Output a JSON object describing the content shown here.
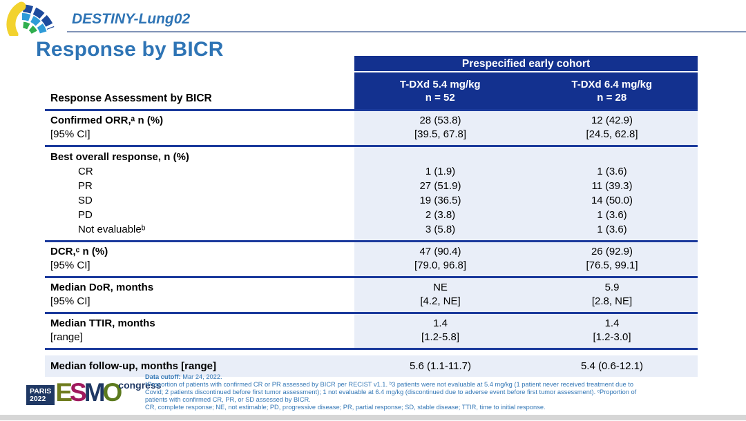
{
  "header": {
    "trial_name": "DESTINY-Lung02",
    "page_title": "Response by BICR"
  },
  "table": {
    "cohort_header": "Prespecified early cohort",
    "row_header_label": "Response Assessment by BICR",
    "columns": [
      {
        "name": "T-DXd 5.4 mg/kg",
        "n": "n = 52"
      },
      {
        "name": "T-DXd 6.4 mg/kg",
        "n": "n = 28"
      }
    ],
    "sections": [
      {
        "rows": [
          {
            "label": "Confirmed ORR,ᵃ n (%)",
            "bold": true,
            "indent": false,
            "values": [
              "28 (53.8)",
              "12 (42.9)"
            ]
          },
          {
            "label": "[95% CI]",
            "bold": false,
            "indent": false,
            "values": [
              "[39.5, 67.8]",
              "[24.5, 62.8]"
            ]
          }
        ]
      },
      {
        "rows": [
          {
            "label": "Best overall response, n (%)",
            "bold": true,
            "indent": false,
            "values": [
              "",
              ""
            ]
          },
          {
            "label": "CR",
            "bold": false,
            "indent": true,
            "values": [
              "1 (1.9)",
              "1 (3.6)"
            ]
          },
          {
            "label": "PR",
            "bold": false,
            "indent": true,
            "values": [
              "27 (51.9)",
              "11 (39.3)"
            ]
          },
          {
            "label": "SD",
            "bold": false,
            "indent": true,
            "values": [
              "19 (36.5)",
              "14 (50.0)"
            ]
          },
          {
            "label": "PD",
            "bold": false,
            "indent": true,
            "values": [
              "2 (3.8)",
              "1 (3.6)"
            ]
          },
          {
            "label": "Not evaluableᵇ",
            "bold": false,
            "indent": true,
            "values": [
              "3 (5.8)",
              "1 (3.6)"
            ]
          }
        ]
      },
      {
        "rows": [
          {
            "label": "DCR,ᶜ n (%)",
            "bold": true,
            "indent": false,
            "values": [
              "47 (90.4)",
              "26 (92.9)"
            ]
          },
          {
            "label": "[95% CI]",
            "bold": false,
            "indent": false,
            "values": [
              "[79.0, 96.8]",
              "[76.5, 99.1]"
            ]
          }
        ]
      },
      {
        "rows": [
          {
            "label": "Median DoR, months",
            "bold": true,
            "indent": false,
            "values": [
              "NE",
              "5.9"
            ]
          },
          {
            "label": "[95% CI]",
            "bold": false,
            "indent": false,
            "values": [
              "[4.2, NE]",
              "[2.8, NE]"
            ]
          }
        ]
      },
      {
        "rows": [
          {
            "label": "Median TTIR, months",
            "bold": true,
            "indent": false,
            "values": [
              "1.4",
              "1.4"
            ]
          },
          {
            "label": "[range]",
            "bold": false,
            "indent": false,
            "values": [
              "[1.2-5.8]",
              "[1.2-3.0]"
            ]
          }
        ]
      }
    ],
    "summary_row": {
      "label": "Median follow-up, months [range]",
      "values": [
        "5.6 (1.1-11.7)",
        "5.4 (0.6-12.1)"
      ]
    }
  },
  "footer": {
    "logo": {
      "venue": "PARIS",
      "year": "2022",
      "letters": [
        "E",
        "S",
        "M",
        "O"
      ],
      "event": "congress"
    },
    "cutoff_label": "Data cutoff:",
    "cutoff_text": " Mar 24, 2022.",
    "footnotes": [
      "ᵃProportion of patients with confirmed CR or PR assessed by BICR per RECIST v1.1. ᵇ3 patients were not evaluable at 5.4 mg/kg (1 patient never received treatment due to",
      "Covid; 2 patients discontinued before first tumor assessment); 1 not evaluable at 6.4 mg/kg (discontinued due to adverse event before first tumor assessment). ᶜProportion of",
      "patients with confirmed CR, PR, or SD assessed by BICR.",
      "CR, complete response; NE, not estimable; PD, progressive disease; PR, partial response; SD, stable disease; TTIR, time to initial response."
    ]
  },
  "colors": {
    "header_navy": "#13318f",
    "rule_navy": "#1b3a9c",
    "cell_light_blue": "#e9eef8",
    "title_blue": "#2e74b5",
    "footnote_blue": "#3276b5",
    "top_rule_gray": "#8093b6",
    "bottom_bar_gray": "#d6d6d6",
    "esmo_navy": "#1f3864",
    "esmo_olive": "#6f7c1e",
    "esmo_magenta": "#a01a5e",
    "logo_yellow": "#f2d22e",
    "logo_dark_blue": "#1e4b9e",
    "logo_light_blue": "#2f9bd8",
    "logo_green": "#2fae4e"
  }
}
